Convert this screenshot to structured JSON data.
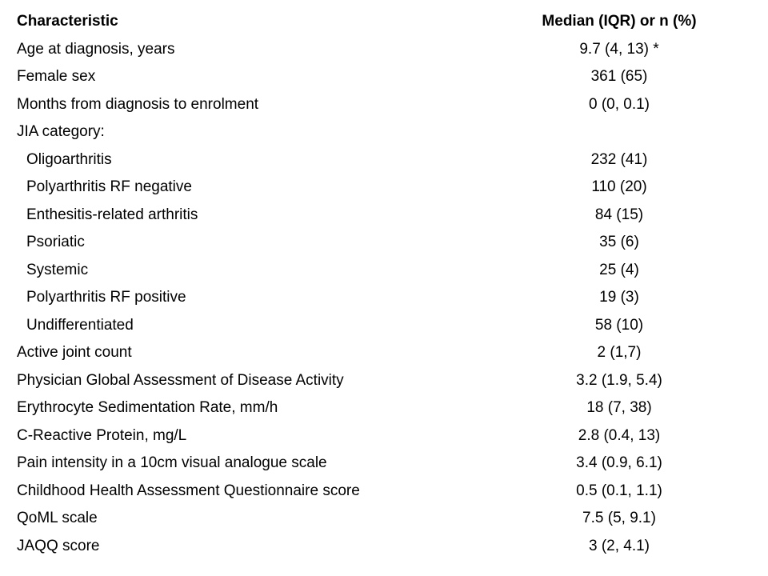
{
  "table": {
    "columns": [
      "Characteristic",
      "Median (IQR) or n (%)"
    ],
    "rows": [
      {
        "label": "Age at diagnosis, years",
        "value": "9.7 (4, 13) *",
        "indent": false
      },
      {
        "label": "Female sex",
        "value": "361 (65)",
        "indent": false
      },
      {
        "label": "Months from diagnosis to enrolment",
        "value": "0 (0, 0.1)",
        "indent": false
      },
      {
        "label": "JIA category:",
        "value": "",
        "indent": false
      },
      {
        "label": "Oligoarthritis",
        "value": "232 (41)",
        "indent": true
      },
      {
        "label": "Polyarthritis RF negative",
        "value": "110 (20)",
        "indent": true
      },
      {
        "label": "Enthesitis-related arthritis",
        "value": "84 (15)",
        "indent": true
      },
      {
        "label": "Psoriatic",
        "value": "35 (6)",
        "indent": true
      },
      {
        "label": "Systemic",
        "value": "25 (4)",
        "indent": true
      },
      {
        "label": "Polyarthritis RF positive",
        "value": "19 (3)",
        "indent": true
      },
      {
        "label": "Undifferentiated",
        "value": "58 (10)",
        "indent": true
      },
      {
        "label": "Active joint count",
        "value": "2 (1,7)",
        "indent": false
      },
      {
        "label": "Physician Global Assessment of Disease Activity",
        "value": "3.2 (1.9, 5.4)",
        "indent": false
      },
      {
        "label": "Erythrocyte Sedimentation Rate, mm/h",
        "value": "18 (7, 38)",
        "indent": false
      },
      {
        "label": "C-Reactive Protein, mg/L",
        "value": "2.8 (0.4, 13)",
        "indent": false
      },
      {
        "label": "Pain intensity in a 10cm visual analogue scale",
        "value": "3.4 (0.9, 6.1)",
        "indent": false
      },
      {
        "label": "Childhood Health Assessment Questionnaire score",
        "value": "0.5 (0.1, 1.1)",
        "indent": false
      },
      {
        "label": "QoML scale",
        "value": "7.5 (5, 9.1)",
        "indent": false
      },
      {
        "label": "JAQQ score",
        "value": "3 (2, 4.1)",
        "indent": false
      }
    ]
  }
}
